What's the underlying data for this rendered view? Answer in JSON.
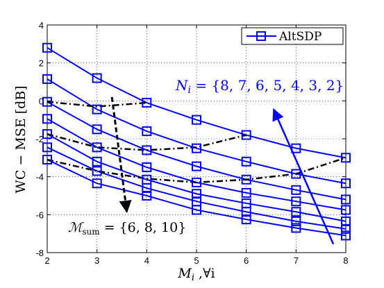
{
  "chart_data": {
    "type": "line",
    "xlabel": "M_i  ,∀i",
    "ylabel": "WC − MSE [dB]",
    "xlim": [
      2,
      8
    ],
    "ylim": [
      -8,
      4
    ],
    "xticks": [
      2,
      3,
      4,
      5,
      6,
      7,
      8
    ],
    "yticks": [
      -8,
      -6,
      -4,
      -2,
      0,
      2,
      4
    ],
    "grid": true,
    "legend": {
      "placement": "top-right",
      "entries": [
        "AltSDP"
      ]
    },
    "colors": {
      "series": "#0000ff",
      "sum": "#000000",
      "annotation_blue": "#0000ff"
    },
    "series": [
      {
        "name": "AltSDP",
        "x": [
          2,
          3,
          4,
          5,
          6,
          7,
          8
        ],
        "values": [
          2.8,
          1.2,
          -0.1,
          -1.0,
          -1.8,
          -2.5,
          -3.0
        ]
      },
      {
        "x": [
          2,
          3,
          4,
          5,
          6,
          7,
          8
        ],
        "values": [
          1.15,
          -0.45,
          -1.6,
          -2.5,
          -3.2,
          -3.85,
          -4.35
        ]
      },
      {
        "x": [
          2,
          3,
          4,
          5,
          6,
          7,
          8
        ],
        "values": [
          -0.05,
          -1.5,
          -2.6,
          -3.45,
          -4.15,
          -4.7,
          -5.2
        ]
      },
      {
        "x": [
          2,
          3,
          4,
          5,
          6,
          7,
          8
        ],
        "values": [
          -0.95,
          -2.45,
          -3.5,
          -4.3,
          -4.85,
          -5.3,
          -5.75
        ]
      },
      {
        "x": [
          2,
          3,
          4,
          5,
          6,
          7,
          8
        ],
        "values": [
          -1.75,
          -3.2,
          -4.15,
          -4.9,
          -5.4,
          -5.85,
          -6.35
        ]
      },
      {
        "x": [
          2,
          3,
          4,
          5,
          6,
          7,
          8
        ],
        "values": [
          -2.45,
          -3.7,
          -4.6,
          -5.3,
          -5.85,
          -6.35,
          -6.75
        ]
      },
      {
        "x": [
          2,
          3,
          4,
          5,
          6,
          7,
          8
        ],
        "values": [
          -3.1,
          -4.35,
          -5.0,
          -5.75,
          -6.25,
          -6.7,
          -7.1
        ]
      }
    ],
    "sum_curves": [
      {
        "x": [
          2,
          3,
          4,
          5,
          6,
          7,
          8
        ],
        "values": [
          -0.05,
          -0.3,
          -0.1,
          null,
          null,
          null,
          null
        ]
      },
      {
        "x": [
          2,
          3,
          4,
          5,
          6,
          7,
          8
        ],
        "values": [
          -1.75,
          -2.45,
          -2.6,
          -2.45,
          -1.8,
          null,
          null
        ]
      },
      {
        "x": [
          2,
          3,
          4,
          5,
          6,
          7,
          8
        ],
        "values": [
          -3.1,
          -3.7,
          -4.1,
          -4.3,
          -4.15,
          -3.85,
          -3.0
        ]
      }
    ],
    "annotations": {
      "n_label": "N_i = {8, 7, 6, 5, 4, 3, 2}",
      "m_label": "ℳ_sum = {6, 8, 10}"
    },
    "arrows": {
      "blue": {
        "from": [
          7.75,
          -7.55
        ],
        "to": [
          6.55,
          -0.45
        ]
      },
      "black": {
        "from": [
          3.3,
          0.2
        ],
        "to": [
          3.6,
          -5.85
        ]
      }
    }
  }
}
